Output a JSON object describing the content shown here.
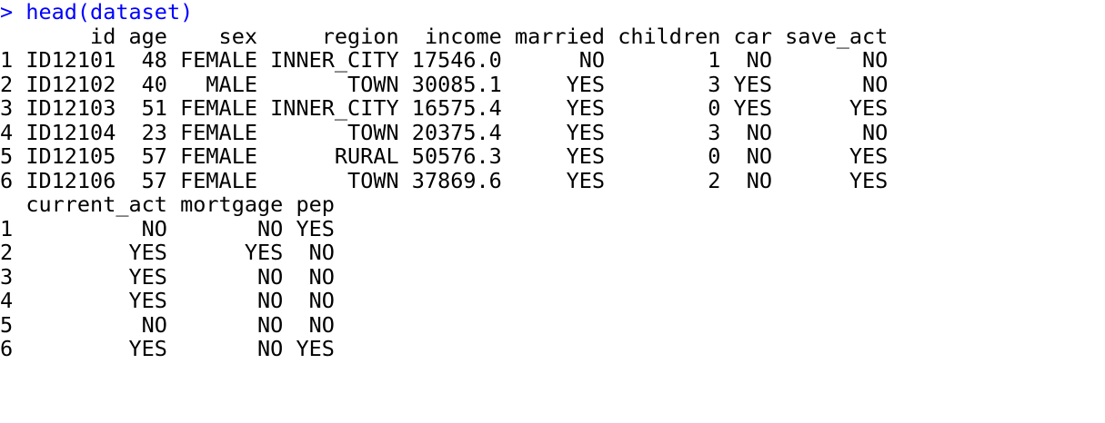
{
  "console": {
    "prompt": ">",
    "command": "head(dataset)",
    "colors": {
      "input": "#0000ff",
      "output": "#000000",
      "background": "#ffffff"
    }
  },
  "table_block_1": {
    "columns": [
      "id",
      "age",
      "sex",
      "region",
      "income",
      "married",
      "children",
      "car",
      "save_act"
    ],
    "rows": [
      {
        "rowname": "1",
        "id": "ID12101",
        "age": "48",
        "sex": "FEMALE",
        "region": "INNER_CITY",
        "income": "17546.0",
        "married": "NO",
        "children": "1",
        "car": "NO",
        "save_act": "NO"
      },
      {
        "rowname": "2",
        "id": "ID12102",
        "age": "40",
        "sex": "MALE",
        "region": "TOWN",
        "income": "30085.1",
        "married": "YES",
        "children": "3",
        "car": "YES",
        "save_act": "NO"
      },
      {
        "rowname": "3",
        "id": "ID12103",
        "age": "51",
        "sex": "FEMALE",
        "region": "INNER_CITY",
        "income": "16575.4",
        "married": "YES",
        "children": "0",
        "car": "YES",
        "save_act": "YES"
      },
      {
        "rowname": "4",
        "id": "ID12104",
        "age": "23",
        "sex": "FEMALE",
        "region": "TOWN",
        "income": "20375.4",
        "married": "YES",
        "children": "3",
        "car": "NO",
        "save_act": "NO"
      },
      {
        "rowname": "5",
        "id": "ID12105",
        "age": "57",
        "sex": "FEMALE",
        "region": "RURAL",
        "income": "50576.3",
        "married": "YES",
        "children": "0",
        "car": "NO",
        "save_act": "YES"
      },
      {
        "rowname": "6",
        "id": "ID12106",
        "age": "57",
        "sex": "FEMALE",
        "region": "TOWN",
        "income": "37869.6",
        "married": "YES",
        "children": "2",
        "car": "NO",
        "save_act": "YES"
      }
    ]
  },
  "table_block_2": {
    "columns": [
      "current_act",
      "mortgage",
      "pep"
    ],
    "rows": [
      {
        "rowname": "1",
        "current_act": "NO",
        "mortgage": "NO",
        "pep": "YES"
      },
      {
        "rowname": "2",
        "current_act": "YES",
        "mortgage": "YES",
        "pep": "NO"
      },
      {
        "rowname": "3",
        "current_act": "YES",
        "mortgage": "NO",
        "pep": "NO"
      },
      {
        "rowname": "4",
        "current_act": "YES",
        "mortgage": "NO",
        "pep": "NO"
      },
      {
        "rowname": "5",
        "current_act": "NO",
        "mortgage": "NO",
        "pep": "NO"
      },
      {
        "rowname": "6",
        "current_act": "YES",
        "mortgage": "NO",
        "pep": "YES"
      }
    ]
  }
}
